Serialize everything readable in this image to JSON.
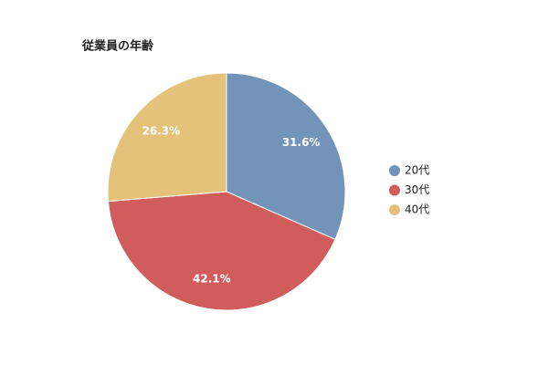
{
  "chart_data": {
    "type": "pie",
    "title": "従業員の年齢",
    "categories": [
      "20代",
      "30代",
      "40代"
    ],
    "values": [
      31.6,
      42.1,
      26.3
    ],
    "value_labels": [
      "31.6%",
      "42.1%",
      "26.3%"
    ],
    "colors": [
      "#7394b9",
      "#d05d5b",
      "#e5c27a"
    ],
    "legend": "right"
  }
}
